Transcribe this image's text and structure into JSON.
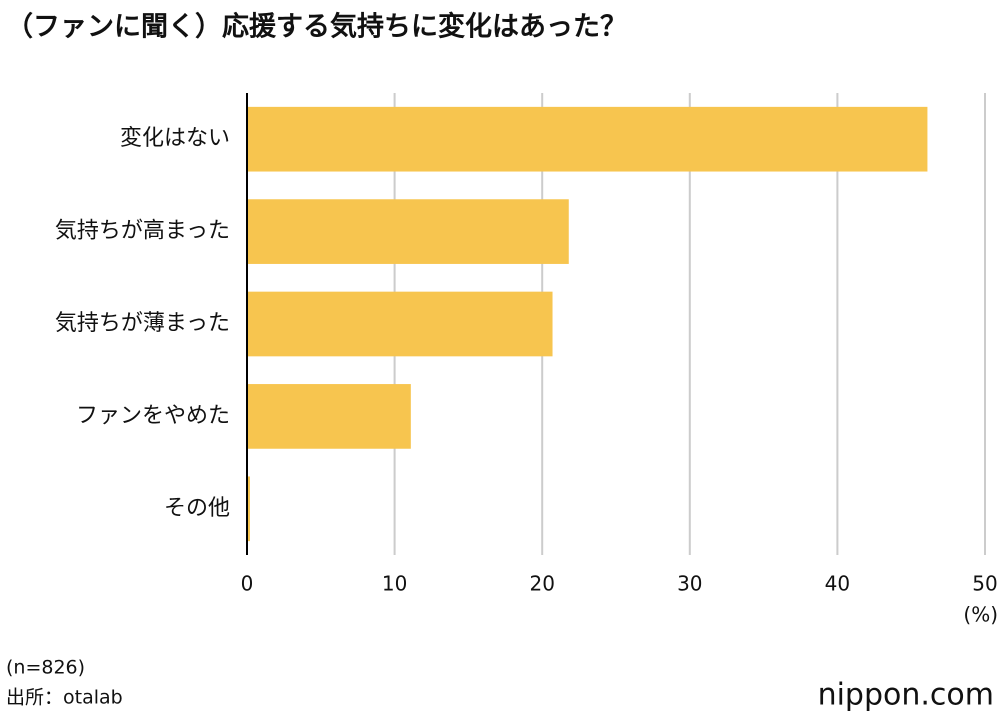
{
  "chart_data": {
    "type": "bar",
    "title": "（ファンに聞く）応援する気持ちに変化はあった？",
    "categories": [
      "変化はない",
      "気持ちが高まった",
      "気持ちが薄まった",
      "ファンをやめた",
      "その他"
    ],
    "values": [
      46.1,
      21.8,
      20.7,
      11.1,
      0.2
    ],
    "color": "#f7c54f",
    "xlim": [
      0,
      50
    ],
    "xticks": [
      0,
      10,
      20,
      30,
      40,
      50
    ],
    "x_unit": "(%)",
    "grid": true,
    "notes": [
      "(n=826)",
      "出所：otalab"
    ],
    "logo": "nippon.com"
  }
}
